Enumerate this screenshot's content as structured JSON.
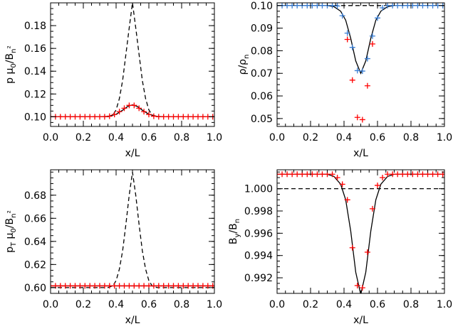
{
  "chart_data": [
    {
      "id": "p",
      "type": "line",
      "xlabel": "x/L",
      "ylabel_parts": [
        "p  ",
        "μ",
        "0",
        "/B",
        "n",
        "²"
      ],
      "xlim": [
        0.0,
        1.0
      ],
      "ylim": [
        0.0915,
        0.2
      ],
      "xticks": [
        0.0,
        0.2,
        0.4,
        0.6,
        0.8,
        1.0
      ],
      "xtick_labels": [
        "0.0",
        "0.2",
        "0.4",
        "0.6",
        "0.8",
        "1.0"
      ],
      "yticks": [
        0.1,
        0.12,
        0.14,
        0.16,
        0.18
      ],
      "ytick_labels": [
        "0.10",
        "0.12",
        "0.14",
        "0.16",
        "0.18"
      ],
      "series": [
        {
          "kind": "dashed",
          "color": "#000000",
          "x": [
            0.0,
            0.35,
            0.38,
            0.4,
            0.42,
            0.44,
            0.46,
            0.48,
            0.5,
            0.52,
            0.54,
            0.56,
            0.58,
            0.6,
            0.62,
            0.65,
            1.0
          ],
          "y": [
            0.1,
            0.1,
            0.1015,
            0.106,
            0.116,
            0.132,
            0.155,
            0.178,
            0.2,
            0.178,
            0.155,
            0.132,
            0.116,
            0.106,
            0.1015,
            0.1,
            0.1
          ]
        },
        {
          "kind": "solid",
          "color": "#000000",
          "x": [
            0.0,
            0.3,
            0.35,
            0.4,
            0.44,
            0.47,
            0.5,
            0.53,
            0.56,
            0.6,
            0.65,
            0.7,
            1.0
          ],
          "y": [
            0.1,
            0.1,
            0.1003,
            0.1022,
            0.1058,
            0.109,
            0.1105,
            0.109,
            0.1058,
            0.1022,
            0.1003,
            0.1,
            0.1
          ]
        },
        {
          "kind": "markers",
          "color": "#ff0000",
          "x": [
            0.0,
            0.03,
            0.06,
            0.09,
            0.12,
            0.15,
            0.18,
            0.21,
            0.24,
            0.27,
            0.3,
            0.33,
            0.36,
            0.39,
            0.42,
            0.45,
            0.48,
            0.51,
            0.54,
            0.57,
            0.6,
            0.63,
            0.66,
            0.69,
            0.72,
            0.75,
            0.78,
            0.81,
            0.84,
            0.87,
            0.9,
            0.93,
            0.96,
            0.99
          ],
          "y": [
            0.1,
            0.1,
            0.1,
            0.1,
            0.1,
            0.1,
            0.1,
            0.1,
            0.1,
            0.1,
            0.1,
            0.1,
            0.1005,
            0.102,
            0.1045,
            0.1075,
            0.11,
            0.11,
            0.1075,
            0.1045,
            0.102,
            0.1005,
            0.1,
            0.1,
            0.1,
            0.1,
            0.1,
            0.1,
            0.1,
            0.1,
            0.1,
            0.1,
            0.1,
            0.1
          ]
        }
      ]
    },
    {
      "id": "rho",
      "type": "line",
      "xlabel": "x/L",
      "ylabel_parts": [
        "ρ/ρ",
        "n"
      ],
      "xlim": [
        0.0,
        1.0
      ],
      "ylim": [
        0.0465,
        0.1012
      ],
      "xticks": [
        0.0,
        0.2,
        0.4,
        0.6,
        0.8,
        1.0
      ],
      "xtick_labels": [
        "0.0",
        "0.2",
        "0.4",
        "0.6",
        "0.8",
        "1.0"
      ],
      "yticks": [
        0.05,
        0.06,
        0.07,
        0.08,
        0.09,
        0.1
      ],
      "ytick_labels": [
        "0.05",
        "0.06",
        "0.07",
        "0.08",
        "0.09",
        "0.10"
      ],
      "series": [
        {
          "kind": "dashed",
          "color": "#000000",
          "x": [
            0.0,
            1.0
          ],
          "y": [
            0.1,
            0.1
          ]
        },
        {
          "kind": "solid",
          "color": "#000000",
          "x": [
            0.0,
            0.3,
            0.34,
            0.38,
            0.41,
            0.44,
            0.47,
            0.5,
            0.53,
            0.56,
            0.59,
            0.62,
            0.66,
            0.7,
            1.0
          ],
          "y": [
            0.1,
            0.1,
            0.0995,
            0.0975,
            0.0935,
            0.0855,
            0.0755,
            0.07,
            0.0755,
            0.0855,
            0.0935,
            0.0975,
            0.0995,
            0.1,
            0.1
          ]
        },
        {
          "kind": "markers",
          "color": "#3a7fd5",
          "x": [
            0.0,
            0.03,
            0.06,
            0.09,
            0.12,
            0.15,
            0.18,
            0.21,
            0.24,
            0.27,
            0.3,
            0.33,
            0.36,
            0.39,
            0.42,
            0.45,
            0.48,
            0.51,
            0.54,
            0.57,
            0.6,
            0.63,
            0.66,
            0.69,
            0.72,
            0.75,
            0.78,
            0.81,
            0.84,
            0.87,
            0.9,
            0.93,
            0.96,
            0.99
          ],
          "y": [
            0.1,
            0.1,
            0.1,
            0.1,
            0.1,
            0.1,
            0.1,
            0.1,
            0.1,
            0.1,
            0.1,
            0.1,
            0.0998,
            0.0955,
            0.0878,
            0.0815,
            0.0712,
            0.071,
            0.0765,
            0.0865,
            0.0945,
            0.099,
            0.1,
            0.1,
            0.1,
            0.1,
            0.1,
            0.1,
            0.1,
            0.1,
            0.1,
            0.1,
            0.1,
            0.1
          ]
        },
        {
          "kind": "markers",
          "color": "#ff0000",
          "x": [
            0.42,
            0.45,
            0.48,
            0.51,
            0.54,
            0.57
          ],
          "y": [
            0.085,
            0.067,
            0.0505,
            0.0495,
            0.0645,
            0.083
          ]
        }
      ]
    },
    {
      "id": "pT",
      "type": "line",
      "xlabel": "x/L",
      "ylabel_parts": [
        "p",
        "T",
        " μ",
        "0",
        "/B",
        "n",
        "²"
      ],
      "xlim": [
        0.0,
        1.0
      ],
      "ylim": [
        0.595,
        0.702
      ],
      "xticks": [
        0.0,
        0.2,
        0.4,
        0.6,
        0.8,
        1.0
      ],
      "xtick_labels": [
        "0.0",
        "0.2",
        "0.4",
        "0.6",
        "0.8",
        "1.0"
      ],
      "yticks": [
        0.6,
        0.62,
        0.64,
        0.66,
        0.68
      ],
      "ytick_labels": [
        "0.60",
        "0.62",
        "0.64",
        "0.66",
        "0.68"
      ],
      "series": [
        {
          "kind": "dashed",
          "color": "#000000",
          "x": [
            0.0,
            0.35,
            0.38,
            0.4,
            0.42,
            0.44,
            0.46,
            0.48,
            0.5,
            0.52,
            0.54,
            0.56,
            0.58,
            0.6,
            0.62,
            0.65,
            1.0
          ],
          "y": [
            0.6,
            0.6,
            0.6015,
            0.606,
            0.616,
            0.632,
            0.655,
            0.68,
            0.7,
            0.68,
            0.655,
            0.632,
            0.616,
            0.606,
            0.6015,
            0.6,
            0.6
          ]
        },
        {
          "kind": "solid",
          "color": "#000000",
          "x": [
            0.0,
            1.0
          ],
          "y": [
            0.6015,
            0.6015
          ]
        },
        {
          "kind": "markers",
          "color": "#ff0000",
          "x": [
            0.0,
            0.03,
            0.06,
            0.09,
            0.12,
            0.15,
            0.18,
            0.21,
            0.24,
            0.27,
            0.3,
            0.33,
            0.36,
            0.39,
            0.42,
            0.45,
            0.48,
            0.51,
            0.54,
            0.57,
            0.6,
            0.63,
            0.66,
            0.69,
            0.72,
            0.75,
            0.78,
            0.81,
            0.84,
            0.87,
            0.9,
            0.93,
            0.96,
            0.99
          ],
          "y": [
            0.6015,
            0.6015,
            0.6015,
            0.6015,
            0.6015,
            0.6015,
            0.6015,
            0.6015,
            0.6015,
            0.6015,
            0.6015,
            0.6015,
            0.6015,
            0.6015,
            0.6015,
            0.6015,
            0.6015,
            0.6015,
            0.6015,
            0.6015,
            0.6015,
            0.6015,
            0.6015,
            0.6015,
            0.6015,
            0.6015,
            0.6015,
            0.6015,
            0.6015,
            0.6015,
            0.6015,
            0.6015,
            0.6015,
            0.6015
          ]
        }
      ]
    },
    {
      "id": "By",
      "type": "line",
      "xlabel": "x/L",
      "ylabel_parts": [
        "B",
        "y",
        "/B",
        "n"
      ],
      "xlim": [
        0.0,
        1.0
      ],
      "ylim": [
        0.9906,
        1.0017
      ],
      "xticks": [
        0.0,
        0.2,
        0.4,
        0.6,
        0.8,
        1.0
      ],
      "xtick_labels": [
        "0.0",
        "0.2",
        "0.4",
        "0.6",
        "0.8",
        "1.0"
      ],
      "yticks": [
        0.992,
        0.994,
        0.996,
        0.998,
        1.0
      ],
      "ytick_labels": [
        "0.992",
        "0.994",
        "0.996",
        "0.998",
        "1.000"
      ],
      "series": [
        {
          "kind": "dashed",
          "color": "#000000",
          "x": [
            0.0,
            1.0
          ],
          "y": [
            1.0,
            1.0
          ]
        },
        {
          "kind": "solid",
          "color": "#000000",
          "x": [
            0.0,
            0.3,
            0.34,
            0.38,
            0.41,
            0.44,
            0.47,
            0.5,
            0.53,
            0.56,
            0.59,
            0.62,
            0.66,
            0.7,
            1.0
          ],
          "y": [
            1.0013,
            1.0013,
            1.0011,
            1.0004,
            0.999,
            0.9962,
            0.9925,
            0.9905,
            0.9925,
            0.9962,
            0.999,
            1.0004,
            1.0011,
            1.0013,
            1.0013
          ]
        },
        {
          "kind": "markers",
          "color": "#ff0000",
          "x": [
            0.0,
            0.03,
            0.06,
            0.09,
            0.12,
            0.15,
            0.18,
            0.21,
            0.24,
            0.27,
            0.3,
            0.33,
            0.36,
            0.39,
            0.42,
            0.45,
            0.48,
            0.51,
            0.54,
            0.57,
            0.6,
            0.63,
            0.66,
            0.69,
            0.72,
            0.75,
            0.78,
            0.81,
            0.84,
            0.87,
            0.9,
            0.93,
            0.96,
            0.99
          ],
          "y": [
            1.0013,
            1.0013,
            1.0013,
            1.0013,
            1.0013,
            1.0013,
            1.0013,
            1.0013,
            1.0013,
            1.0013,
            1.0013,
            1.0013,
            1.001,
            1.0004,
            0.999,
            0.9947,
            0.9913,
            0.9911,
            0.9943,
            0.9982,
            1.0003,
            1.001,
            1.0013,
            1.0013,
            1.0013,
            1.0013,
            1.0013,
            1.0013,
            1.0013,
            1.0013,
            1.0013,
            1.0013,
            1.0013,
            1.0013
          ]
        }
      ]
    }
  ]
}
